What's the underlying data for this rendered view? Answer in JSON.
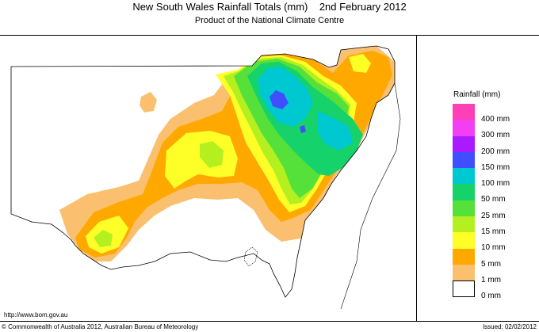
{
  "header": {
    "title": "New South Wales Rainfall Totals (mm)    2nd February 2012",
    "subtitle": "Product of the National Climate Centre"
  },
  "legend": {
    "title": "Rainfall (mm)",
    "items": [
      {
        "label": "400 mm",
        "color": "#ff3fb5"
      },
      {
        "label": "300 mm",
        "color": "#f33ff3"
      },
      {
        "label": "200 mm",
        "color": "#aa1aff"
      },
      {
        "label": "150 mm",
        "color": "#3f4fff"
      },
      {
        "label": "100 mm",
        "color": "#00c8d0"
      },
      {
        "label": "50 mm",
        "color": "#16d26a"
      },
      {
        "label": "25 mm",
        "color": "#55e13a"
      },
      {
        "label": "15 mm",
        "color": "#b4f020"
      },
      {
        "label": "10 mm",
        "color": "#ffff28"
      },
      {
        "label": "5 mm",
        "color": "#ffa800"
      },
      {
        "label": "1 mm",
        "color": "#fac070"
      },
      {
        "label": "0 mm",
        "color": "#ffffff"
      }
    ]
  },
  "footer": {
    "url": "http://www.bom.gov.au",
    "copyright": "© Commonwealth of Australia 2012, Australian Bureau of Meteorology",
    "issued": "Issued: 02/02/2012"
  }
}
